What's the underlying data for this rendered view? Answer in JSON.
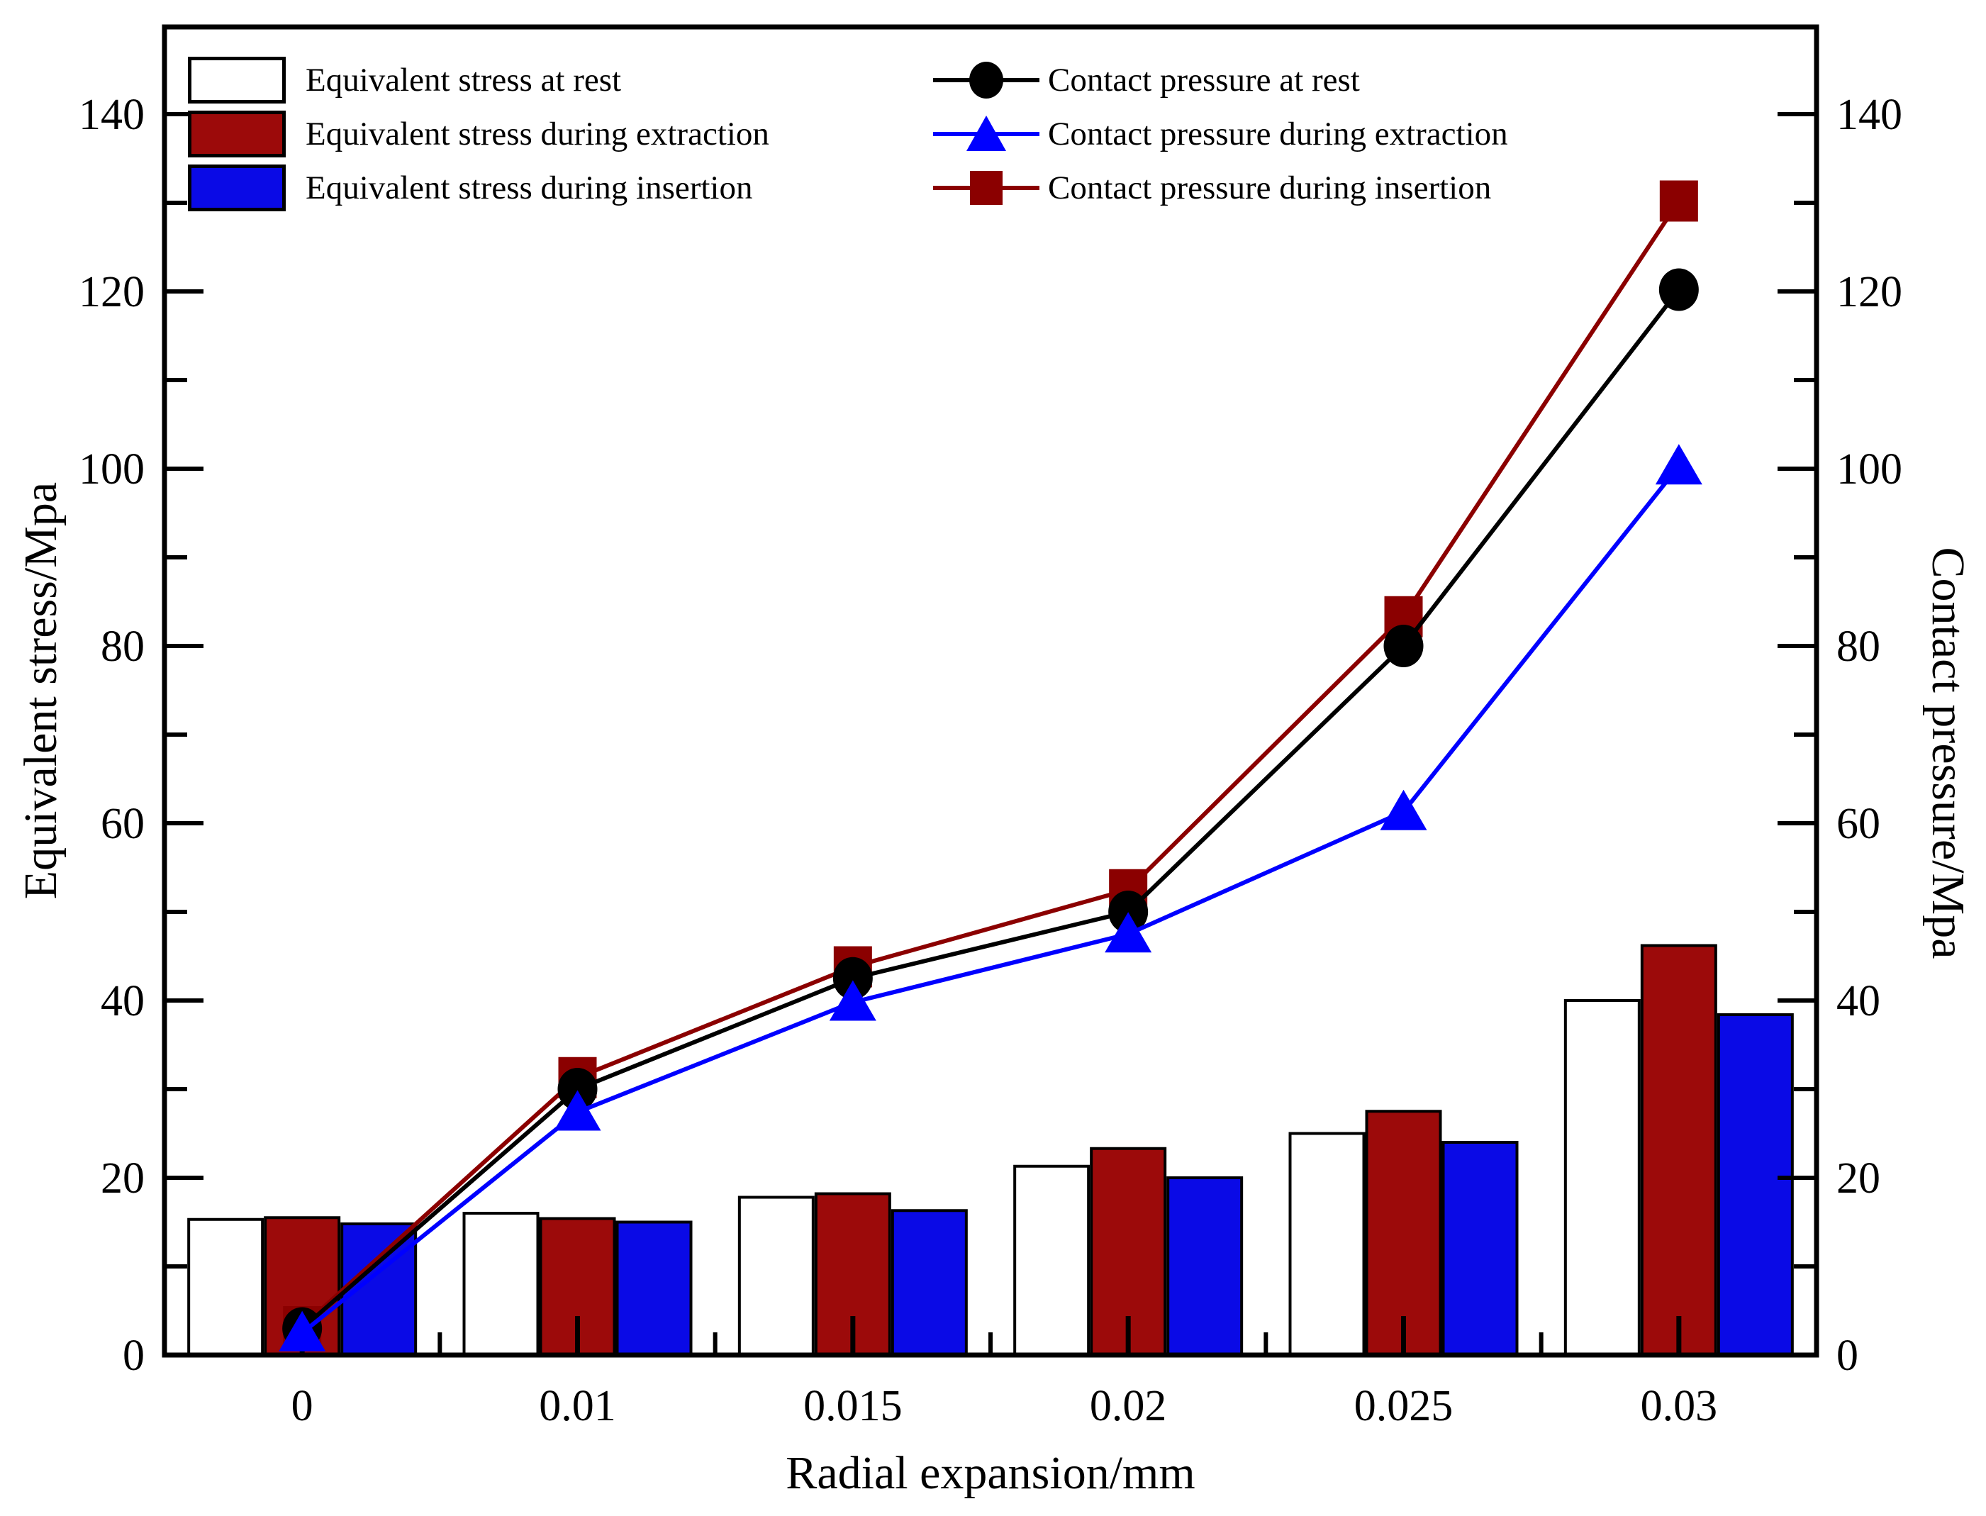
{
  "chart_data": {
    "type": "bar+line (dual y-axis)",
    "title": "",
    "xlabel": "Radial expansion/mm",
    "ylabel_left": "Equivalent stress/Mpa",
    "ylabel_right": "Contact pressure/Mpa",
    "categories": [
      "0",
      "0.01",
      "0.015",
      "0.02",
      "0.025",
      "0.03"
    ],
    "y_axis": {
      "min": 0,
      "max": 150,
      "major_ticks": [
        0,
        20,
        40,
        60,
        80,
        100,
        120,
        140
      ],
      "minor_step": 10,
      "grid": false
    },
    "legend_position": "top-left inside, two columns",
    "bar_series": [
      {
        "name": "Equivalent stress at rest",
        "fill": "#ffffff",
        "stroke": "#000000",
        "values": [
          15.3,
          16.0,
          17.8,
          21.3,
          25.0,
          40.0
        ]
      },
      {
        "name": "Equivalent stress during extraction",
        "fill": "#9c0a0a",
        "stroke": "#000000",
        "values": [
          15.5,
          15.4,
          18.2,
          23.3,
          27.5,
          46.2
        ]
      },
      {
        "name": "Equivalent stress during insertion",
        "fill": "#0a0ae6",
        "stroke": "#000000",
        "values": [
          14.8,
          15.0,
          16.3,
          20.0,
          24.0,
          38.4
        ]
      }
    ],
    "line_series": [
      {
        "name": "Contact pressure at rest",
        "color": "#000000",
        "marker": "circle",
        "values": [
          3.0,
          30.0,
          42.5,
          50.0,
          80.0,
          120.2
        ]
      },
      {
        "name": "Contact pressure during extraction",
        "color": "#0000ff",
        "marker": "triangle",
        "values": [
          2.5,
          27.4,
          39.8,
          47.5,
          61.3,
          100.3
        ]
      },
      {
        "name": "Contact pressure during insertion",
        "color": "#8b0000",
        "marker": "square",
        "values": [
          3.2,
          31.3,
          43.8,
          52.5,
          83.3,
          130.2
        ]
      }
    ]
  }
}
